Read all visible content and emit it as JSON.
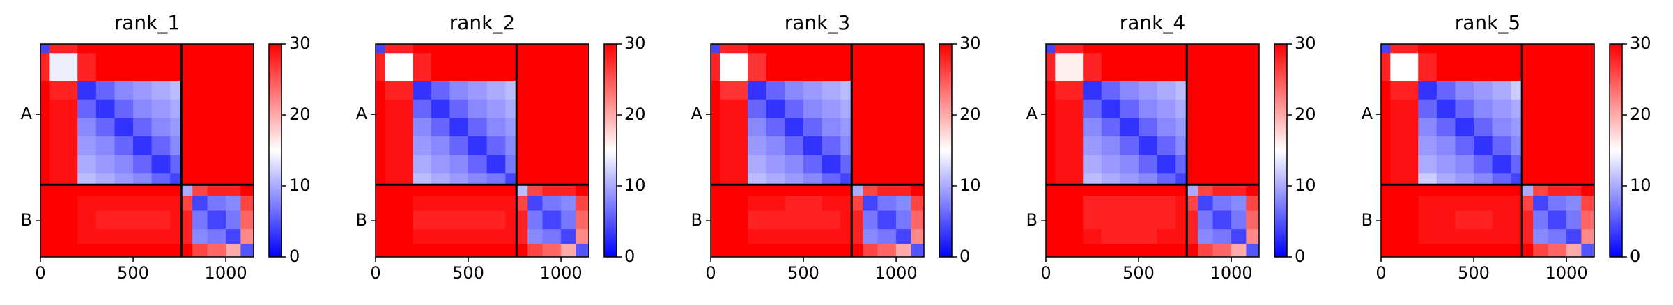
{
  "chart_data": [
    {
      "type": "heatmap",
      "title": "rank_1",
      "xlim": [
        0,
        1150
      ],
      "ylim": [
        1150,
        0
      ],
      "xticks": [
        0,
        500,
        1000
      ],
      "yticks": [
        {
          "value": 380,
          "label": "A"
        },
        {
          "value": 955,
          "label": "B"
        }
      ],
      "chain_boundaries": [
        760
      ],
      "clim": [
        0,
        30
      ],
      "cticks": [
        0,
        10,
        20,
        30
      ],
      "bins": [
        0,
        50,
        200,
        300,
        400,
        500,
        600,
        700,
        760,
        820,
        900,
        1000,
        1080,
        1150
      ],
      "matrix": [
        [
          4,
          28,
          30,
          30,
          30,
          30,
          30,
          30,
          30,
          30,
          30,
          30,
          30
        ],
        [
          28,
          14,
          28,
          30,
          30,
          30,
          30,
          30,
          30,
          30,
          30,
          30,
          30
        ],
        [
          30,
          28,
          3,
          6,
          8,
          9,
          10,
          11,
          30,
          30,
          30,
          30,
          30
        ],
        [
          30,
          29,
          6,
          3,
          6,
          8,
          9,
          10,
          30,
          30,
          30,
          30,
          30
        ],
        [
          30,
          29,
          8,
          6,
          3,
          6,
          8,
          9,
          30,
          30,
          30,
          30,
          30
        ],
        [
          30,
          29,
          9,
          8,
          6,
          3,
          6,
          8,
          30,
          30,
          30,
          30,
          30
        ],
        [
          30,
          29,
          10,
          9,
          8,
          6,
          3,
          6,
          30,
          30,
          30,
          30,
          30
        ],
        [
          30,
          29,
          11,
          10,
          9,
          8,
          6,
          4,
          30,
          30,
          30,
          30,
          30
        ],
        [
          30,
          30,
          30,
          30,
          30,
          30,
          30,
          30,
          10,
          26,
          28,
          28,
          30
        ],
        [
          30,
          30,
          29,
          29,
          29,
          29,
          29,
          29,
          26,
          4,
          7,
          8,
          26
        ],
        [
          30,
          30,
          29,
          28,
          28,
          28,
          28,
          29,
          28,
          7,
          4,
          7,
          24
        ],
        [
          30,
          30,
          29,
          29,
          29,
          29,
          29,
          29,
          28,
          8,
          7,
          4,
          22
        ],
        [
          30,
          30,
          30,
          30,
          30,
          30,
          30,
          30,
          30,
          26,
          24,
          20,
          5
        ]
      ]
    },
    {
      "type": "heatmap",
      "title": "rank_2",
      "xlim": [
        0,
        1150
      ],
      "ylim": [
        1150,
        0
      ],
      "xticks": [
        0,
        500,
        1000
      ],
      "yticks": [
        {
          "value": 380,
          "label": "A"
        },
        {
          "value": 955,
          "label": "B"
        }
      ],
      "chain_boundaries": [
        760
      ],
      "clim": [
        0,
        30
      ],
      "cticks": [
        0,
        10,
        20,
        30
      ],
      "bins": [
        0,
        50,
        200,
        300,
        400,
        500,
        600,
        700,
        760,
        820,
        900,
        1000,
        1080,
        1150
      ],
      "matrix": [
        [
          4,
          28,
          30,
          30,
          30,
          30,
          30,
          30,
          30,
          30,
          30,
          30,
          30
        ],
        [
          28,
          15,
          28,
          30,
          30,
          30,
          30,
          30,
          30,
          30,
          30,
          30,
          30
        ],
        [
          30,
          28,
          3,
          6,
          8,
          9,
          10,
          11,
          30,
          30,
          30,
          30,
          30
        ],
        [
          30,
          29,
          6,
          3,
          6,
          8,
          9,
          10,
          30,
          30,
          30,
          30,
          30
        ],
        [
          30,
          29,
          8,
          6,
          3,
          6,
          8,
          9,
          30,
          30,
          30,
          30,
          30
        ],
        [
          30,
          29,
          9,
          8,
          6,
          3,
          6,
          8,
          30,
          30,
          30,
          30,
          30
        ],
        [
          30,
          29,
          10,
          9,
          8,
          6,
          3,
          7,
          30,
          30,
          30,
          30,
          30
        ],
        [
          30,
          29,
          11,
          10,
          9,
          8,
          7,
          4,
          30,
          30,
          30,
          30,
          30
        ],
        [
          30,
          30,
          30,
          30,
          30,
          30,
          30,
          30,
          11,
          26,
          28,
          28,
          30
        ],
        [
          30,
          30,
          29,
          29,
          29,
          29,
          29,
          29,
          26,
          4,
          7,
          8,
          26
        ],
        [
          30,
          30,
          28,
          28,
          28,
          28,
          28,
          29,
          28,
          7,
          4,
          7,
          24
        ],
        [
          30,
          30,
          29,
          29,
          29,
          29,
          29,
          29,
          28,
          8,
          7,
          4,
          22
        ],
        [
          30,
          30,
          30,
          30,
          30,
          30,
          30,
          30,
          30,
          26,
          24,
          20,
          5
        ]
      ]
    },
    {
      "type": "heatmap",
      "title": "rank_3",
      "xlim": [
        0,
        1150
      ],
      "ylim": [
        1150,
        0
      ],
      "xticks": [
        0,
        500,
        1000
      ],
      "yticks": [
        {
          "value": 380,
          "label": "A"
        },
        {
          "value": 955,
          "label": "B"
        }
      ],
      "chain_boundaries": [
        760
      ],
      "clim": [
        0,
        30
      ],
      "cticks": [
        0,
        10,
        20,
        30
      ],
      "bins": [
        0,
        50,
        200,
        300,
        400,
        500,
        600,
        700,
        760,
        820,
        900,
        1000,
        1080,
        1150
      ],
      "matrix": [
        [
          4,
          28,
          30,
          30,
          30,
          30,
          30,
          30,
          30,
          30,
          30,
          30,
          30
        ],
        [
          28,
          15,
          27,
          30,
          30,
          30,
          30,
          30,
          30,
          30,
          30,
          30,
          30
        ],
        [
          30,
          27,
          3,
          6,
          8,
          9,
          10,
          11,
          30,
          30,
          30,
          30,
          30
        ],
        [
          30,
          29,
          6,
          3,
          6,
          8,
          9,
          10,
          30,
          30,
          30,
          30,
          30
        ],
        [
          30,
          29,
          8,
          6,
          3,
          6,
          8,
          9,
          30,
          30,
          30,
          30,
          30
        ],
        [
          30,
          29,
          9,
          8,
          6,
          3,
          6,
          8,
          30,
          30,
          30,
          30,
          30
        ],
        [
          30,
          29,
          10,
          9,
          8,
          6,
          3,
          6,
          30,
          30,
          30,
          30,
          30
        ],
        [
          30,
          29,
          11,
          10,
          9,
          8,
          6,
          4,
          30,
          30,
          30,
          30,
          30
        ],
        [
          30,
          30,
          30,
          30,
          30,
          30,
          30,
          30,
          10,
          26,
          28,
          28,
          30
        ],
        [
          30,
          30,
          29,
          29,
          28,
          28,
          29,
          29,
          26,
          4,
          7,
          8,
          26
        ],
        [
          30,
          30,
          28,
          28,
          28,
          28,
          28,
          29,
          28,
          7,
          4,
          7,
          24
        ],
        [
          30,
          30,
          29,
          29,
          29,
          29,
          29,
          29,
          28,
          8,
          7,
          4,
          22
        ],
        [
          30,
          30,
          30,
          30,
          30,
          30,
          30,
          30,
          30,
          26,
          24,
          20,
          5
        ]
      ]
    },
    {
      "type": "heatmap",
      "title": "rank_4",
      "xlim": [
        0,
        1150
      ],
      "ylim": [
        1150,
        0
      ],
      "xticks": [
        0,
        500,
        1000
      ],
      "yticks": [
        {
          "value": 380,
          "label": "A"
        },
        {
          "value": 955,
          "label": "B"
        }
      ],
      "chain_boundaries": [
        760
      ],
      "clim": [
        0,
        30
      ],
      "cticks": [
        0,
        10,
        20,
        30
      ],
      "bins": [
        0,
        50,
        200,
        300,
        400,
        500,
        600,
        700,
        760,
        820,
        900,
        1000,
        1080,
        1150
      ],
      "matrix": [
        [
          4,
          28,
          30,
          30,
          30,
          30,
          30,
          30,
          30,
          30,
          30,
          30,
          30
        ],
        [
          28,
          16,
          28,
          30,
          30,
          30,
          30,
          30,
          30,
          30,
          30,
          30,
          30
        ],
        [
          30,
          28,
          3,
          6,
          8,
          9,
          10,
          11,
          30,
          30,
          30,
          30,
          30
        ],
        [
          30,
          29,
          6,
          3,
          6,
          8,
          9,
          10,
          30,
          30,
          30,
          30,
          30
        ],
        [
          30,
          29,
          8,
          6,
          3,
          6,
          8,
          9,
          30,
          30,
          30,
          30,
          30
        ],
        [
          30,
          29,
          9,
          8,
          6,
          3,
          6,
          8,
          30,
          30,
          30,
          30,
          30
        ],
        [
          30,
          29,
          10,
          9,
          8,
          6,
          3,
          6,
          30,
          30,
          30,
          30,
          30
        ],
        [
          30,
          29,
          11,
          10,
          9,
          8,
          6,
          4,
          30,
          30,
          30,
          30,
          30
        ],
        [
          30,
          30,
          30,
          30,
          30,
          30,
          30,
          30,
          10,
          26,
          28,
          28,
          30
        ],
        [
          30,
          30,
          28,
          28,
          28,
          28,
          28,
          29,
          26,
          4,
          7,
          8,
          26
        ],
        [
          30,
          30,
          28,
          28,
          28,
          28,
          28,
          29,
          28,
          7,
          4,
          7,
          24
        ],
        [
          30,
          30,
          29,
          28,
          28,
          28,
          29,
          29,
          28,
          8,
          7,
          4,
          22
        ],
        [
          30,
          30,
          30,
          30,
          30,
          30,
          30,
          30,
          30,
          26,
          24,
          20,
          5
        ]
      ]
    },
    {
      "type": "heatmap",
      "title": "rank_5",
      "xlim": [
        0,
        1150
      ],
      "ylim": [
        1150,
        0
      ],
      "xticks": [
        0,
        500,
        1000
      ],
      "yticks": [
        {
          "value": 380,
          "label": "A"
        },
        {
          "value": 955,
          "label": "B"
        }
      ],
      "chain_boundaries": [
        760
      ],
      "clim": [
        0,
        30
      ],
      "cticks": [
        0,
        10,
        20,
        30
      ],
      "bins": [
        0,
        50,
        200,
        300,
        400,
        500,
        600,
        700,
        760,
        820,
        900,
        1000,
        1080,
        1150
      ],
      "matrix": [
        [
          4,
          28,
          30,
          30,
          30,
          30,
          30,
          30,
          30,
          30,
          30,
          30,
          30
        ],
        [
          28,
          15,
          28,
          30,
          30,
          30,
          30,
          30,
          30,
          30,
          30,
          30,
          30
        ],
        [
          30,
          28,
          3,
          6,
          8,
          9,
          10,
          12,
          30,
          30,
          30,
          30,
          30
        ],
        [
          30,
          29,
          6,
          3,
          6,
          8,
          9,
          10,
          30,
          30,
          30,
          30,
          30
        ],
        [
          30,
          29,
          8,
          6,
          3,
          6,
          8,
          9,
          30,
          30,
          30,
          30,
          30
        ],
        [
          30,
          29,
          9,
          8,
          6,
          3,
          6,
          8,
          30,
          30,
          30,
          30,
          30
        ],
        [
          30,
          29,
          10,
          9,
          8,
          6,
          3,
          6,
          30,
          30,
          30,
          30,
          30
        ],
        [
          30,
          29,
          12,
          10,
          9,
          8,
          6,
          4,
          30,
          30,
          30,
          30,
          30
        ],
        [
          30,
          30,
          30,
          30,
          30,
          30,
          30,
          30,
          10,
          26,
          28,
          28,
          30
        ],
        [
          30,
          30,
          29,
          29,
          29,
          29,
          29,
          29,
          26,
          4,
          7,
          8,
          26
        ],
        [
          30,
          30,
          29,
          29,
          28,
          28,
          29,
          29,
          28,
          7,
          4,
          7,
          24
        ],
        [
          30,
          30,
          29,
          29,
          29,
          29,
          29,
          29,
          28,
          8,
          7,
          4,
          22
        ],
        [
          30,
          30,
          30,
          30,
          30,
          30,
          30,
          30,
          30,
          26,
          24,
          20,
          5
        ]
      ]
    }
  ]
}
